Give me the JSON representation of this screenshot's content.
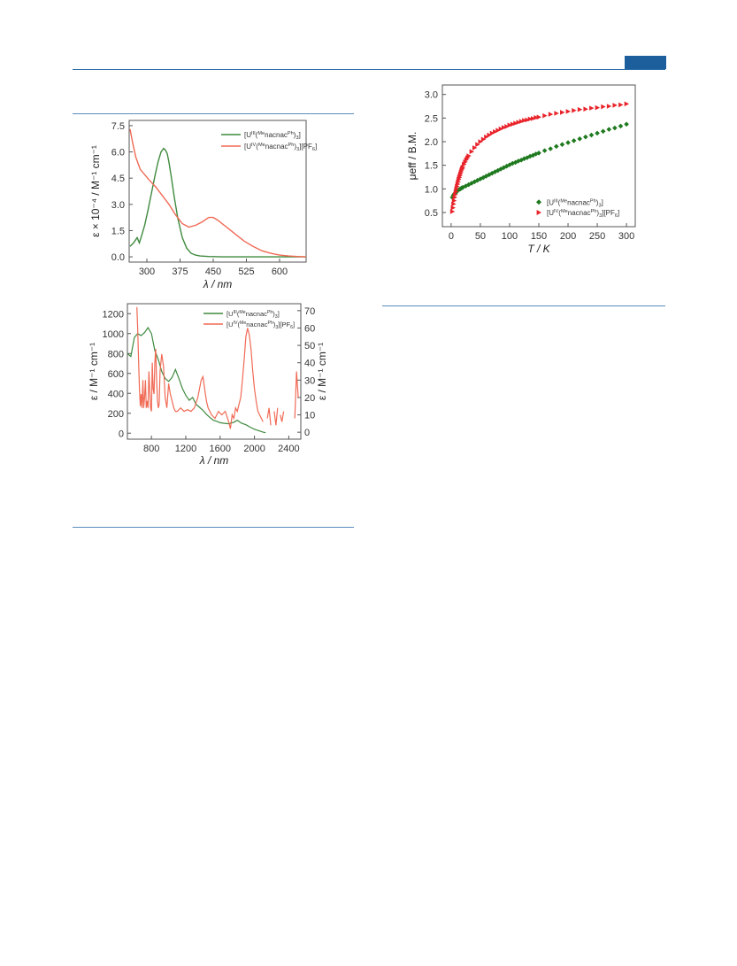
{
  "colors": {
    "header_rule": "#2f6fa8",
    "header_tab": "#1d5f9c",
    "section_rule": "#5a8dbd",
    "green": "#3f8a3f",
    "red": "#f06a55",
    "mag_green": "#1f7a1f",
    "mag_red": "#e8232a"
  },
  "legend": {
    "uiii": {
      "base": "[U",
      "sup1": "III",
      "mid": "(",
      "sup2": "Me",
      "mid2": "nacnac",
      "sup3": "Ph",
      "end": ")",
      "sub": "3",
      "end2": "]"
    },
    "uiv": {
      "base": "[U",
      "sup1": "IV",
      "mid": "(",
      "sup2": "Me",
      "mid2": "nacnac",
      "sup3": "Ph",
      "end": ")",
      "sub": "3",
      "end2": "][PF",
      "sub2": "6",
      "end3": "]"
    }
  },
  "chart_data": [
    {
      "type": "line",
      "xlabel": "λ / nm",
      "ylabel": "ε × 10⁻⁴ / M⁻¹ cm⁻¹",
      "xlim": [
        260,
        660
      ],
      "ylim": [
        -0.3,
        7.8
      ],
      "xticks": [
        300,
        375,
        450,
        525,
        600
      ],
      "yticks": [
        0.0,
        1.5,
        3.0,
        4.5,
        6.0,
        7.5
      ],
      "legend_position": "top-right",
      "series": [
        {
          "name": "[U^III(^Me nacnac^Ph)_3]",
          "color": "green",
          "x": [
            262,
            270,
            278,
            283,
            288,
            295,
            302,
            310,
            318,
            325,
            332,
            338,
            342,
            346,
            350,
            355,
            362,
            370,
            380,
            390,
            400,
            410,
            420,
            440,
            470,
            500,
            550,
            600,
            660
          ],
          "y": [
            0.6,
            0.8,
            1.1,
            0.8,
            1.2,
            1.8,
            2.6,
            3.6,
            4.6,
            5.4,
            6.0,
            6.2,
            6.1,
            5.9,
            5.4,
            4.6,
            3.4,
            2.2,
            1.1,
            0.5,
            0.2,
            0.1,
            0.05,
            0.02,
            0.0,
            0.0,
            0.0,
            0.0,
            0.0
          ]
        },
        {
          "name": "[U^IV(^Me nacnac^Ph)_3][PF_6]",
          "color": "red",
          "x": [
            262,
            268,
            275,
            285,
            295,
            305,
            320,
            335,
            350,
            365,
            380,
            395,
            410,
            425,
            440,
            450,
            460,
            475,
            490,
            505,
            520,
            540,
            560,
            580,
            600,
            620,
            640,
            660
          ],
          "y": [
            7.3,
            6.5,
            5.7,
            5.0,
            4.7,
            4.4,
            4.0,
            3.5,
            3.0,
            2.4,
            1.9,
            1.7,
            1.8,
            2.0,
            2.25,
            2.25,
            2.1,
            1.8,
            1.5,
            1.2,
            0.9,
            0.6,
            0.35,
            0.2,
            0.1,
            0.05,
            0.02,
            0.0
          ]
        }
      ]
    },
    {
      "type": "line",
      "xlabel": "λ / nm",
      "ylabel": "ε / M⁻¹ cm⁻¹",
      "ylabel_right": "ε / M⁻¹ cm⁻¹",
      "xlim": [
        520,
        2540
      ],
      "ylim": [
        -60,
        1300
      ],
      "ylim_right": [
        -4,
        74
      ],
      "xticks": [
        800,
        1200,
        1600,
        2000,
        2400
      ],
      "yticks": [
        0,
        200,
        400,
        600,
        800,
        1000,
        1200
      ],
      "yticks_right": [
        0,
        10,
        20,
        30,
        40,
        50,
        60,
        70
      ],
      "legend_position": "top-right",
      "series": [
        {
          "name": "[U^III(^Me nacnac^Ph)_3]",
          "color": "green",
          "axis": "left",
          "x": [
            520,
            560,
            600,
            640,
            680,
            720,
            760,
            800,
            840,
            880,
            920,
            960,
            1000,
            1040,
            1080,
            1120,
            1160,
            1200,
            1240,
            1280,
            1320,
            1360,
            1400,
            1440,
            1480,
            1520,
            1560,
            1600,
            1640,
            1700,
            1760,
            1800,
            1850,
            1900,
            1950,
            2000,
            2050,
            2100,
            2130
          ],
          "y": [
            800,
            770,
            960,
            1000,
            980,
            1010,
            1060,
            1000,
            830,
            740,
            620,
            550,
            520,
            560,
            640,
            550,
            450,
            380,
            330,
            360,
            290,
            260,
            230,
            190,
            160,
            130,
            120,
            105,
            100,
            95,
            110,
            130,
            100,
            85,
            60,
            40,
            25,
            10,
            5
          ]
        },
        {
          "name": "[U^IV(^Me nacnac^Ph)_3][PF_6]",
          "color": "red",
          "axis": "right",
          "x": [
            630,
            640,
            650,
            660,
            670,
            680,
            690,
            700,
            710,
            720,
            730,
            740,
            750,
            760,
            770,
            780,
            790,
            800,
            810,
            820,
            830,
            840,
            850,
            860,
            870,
            880,
            890,
            900,
            920,
            940,
            960,
            980,
            1000,
            1020,
            1040,
            1060,
            1080,
            1100,
            1140,
            1180,
            1220,
            1260,
            1300,
            1340,
            1380,
            1400,
            1420,
            1440,
            1460,
            1500,
            1540,
            1580,
            1620,
            1660,
            1700,
            1720,
            1740,
            1760,
            1780,
            1800,
            1820,
            1840,
            1860,
            1880,
            1900,
            1920,
            1940,
            1960,
            1980,
            2000,
            2020,
            2040,
            2060,
            2080,
            2100
          ],
          "y": [
            72,
            60,
            42,
            25,
            15,
            22,
            14,
            30,
            14,
            20,
            30,
            14,
            18,
            14,
            35,
            25,
            14,
            12,
            40,
            25,
            22,
            40,
            48,
            30,
            18,
            14,
            16,
            35,
            45,
            38,
            20,
            14,
            28,
            22,
            18,
            14,
            12,
            12,
            14,
            12,
            13,
            12,
            14,
            20,
            30,
            32,
            25,
            18,
            14,
            10,
            8,
            12,
            10,
            12,
            6,
            2,
            10,
            8,
            14,
            12,
            16,
            20,
            30,
            42,
            55,
            60,
            56,
            48,
            35,
            25,
            18,
            12,
            10,
            8,
            6
          ]
        }
      ]
    },
    {
      "type": "scatter",
      "xlabel": "T / K",
      "ylabel": "μeff / B.M.",
      "xlim": [
        -15,
        315
      ],
      "ylim": [
        0.2,
        3.2
      ],
      "xticks": [
        0,
        50,
        100,
        150,
        200,
        250,
        300
      ],
      "yticks": [
        0.5,
        1.0,
        1.5,
        2.0,
        2.5,
        3.0
      ],
      "legend_position": "bottom-right",
      "series": [
        {
          "name": "[U^III(^Me nacnac^Ph)_3]",
          "color": "mag_green",
          "marker": "diamond",
          "x": [
            2,
            4,
            6,
            8,
            10,
            12,
            14,
            16,
            18,
            20,
            25,
            30,
            35,
            40,
            45,
            50,
            55,
            60,
            65,
            70,
            75,
            80,
            85,
            90,
            95,
            100,
            105,
            110,
            115,
            120,
            125,
            130,
            135,
            140,
            145,
            150,
            160,
            170,
            180,
            190,
            200,
            210,
            220,
            230,
            240,
            250,
            260,
            270,
            280,
            290,
            300
          ],
          "y": [
            0.82,
            0.87,
            0.9,
            0.92,
            0.95,
            0.97,
            0.99,
            1.0,
            1.02,
            1.03,
            1.06,
            1.09,
            1.12,
            1.15,
            1.18,
            1.21,
            1.24,
            1.27,
            1.3,
            1.33,
            1.36,
            1.39,
            1.42,
            1.45,
            1.48,
            1.51,
            1.54,
            1.56,
            1.59,
            1.61,
            1.64,
            1.66,
            1.69,
            1.71,
            1.74,
            1.76,
            1.81,
            1.85,
            1.9,
            1.94,
            1.98,
            2.02,
            2.06,
            2.1,
            2.14,
            2.18,
            2.22,
            2.26,
            2.29,
            2.33,
            2.37
          ]
        },
        {
          "name": "[U^IV(^Me nacnac^Ph)_3][PF_6]",
          "color": "mag_red",
          "marker": "triangle",
          "x": [
            2,
            3,
            4,
            5,
            6,
            7,
            8,
            9,
            10,
            11,
            12,
            13,
            14,
            15,
            16,
            17,
            18,
            19,
            20,
            22,
            24,
            26,
            28,
            30,
            35,
            40,
            45,
            50,
            55,
            60,
            65,
            70,
            75,
            80,
            85,
            90,
            95,
            100,
            105,
            110,
            115,
            120,
            125,
            130,
            135,
            140,
            145,
            150,
            160,
            170,
            180,
            190,
            200,
            210,
            220,
            230,
            240,
            250,
            260,
            270,
            280,
            290,
            300
          ],
          "y": [
            0.52,
            0.6,
            0.68,
            0.75,
            0.82,
            0.88,
            0.94,
            1.0,
            1.05,
            1.1,
            1.15,
            1.2,
            1.24,
            1.28,
            1.32,
            1.36,
            1.4,
            1.43,
            1.46,
            1.52,
            1.57,
            1.62,
            1.66,
            1.7,
            1.79,
            1.87,
            1.94,
            2.0,
            2.05,
            2.1,
            2.14,
            2.18,
            2.21,
            2.24,
            2.27,
            2.3,
            2.32,
            2.35,
            2.37,
            2.39,
            2.41,
            2.43,
            2.45,
            2.46,
            2.48,
            2.49,
            2.51,
            2.52,
            2.55,
            2.58,
            2.6,
            2.62,
            2.64,
            2.66,
            2.68,
            2.69,
            2.71,
            2.72,
            2.74,
            2.75,
            2.77,
            2.78,
            2.8
          ]
        }
      ]
    }
  ]
}
